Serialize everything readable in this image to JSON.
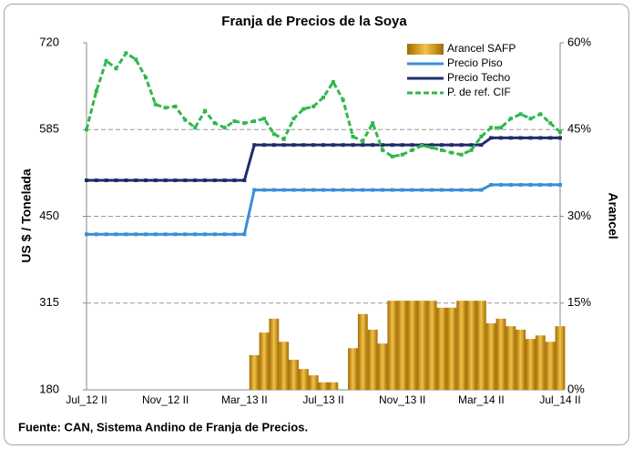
{
  "chart_data": {
    "type": "bar-line",
    "title": "Franja de Precios de la Soya",
    "ylabel": "US $ / Tonelada",
    "y2label": "Arancel",
    "source": "Fuente: CAN, Sistema Andino de Franja de Precios.",
    "categories": [
      "Jul_12 II",
      null,
      null,
      null,
      null,
      null,
      null,
      null,
      "Nov_12 II",
      null,
      null,
      null,
      null,
      null,
      null,
      null,
      "Mar_13 II",
      null,
      null,
      null,
      null,
      null,
      null,
      null,
      "Jul_13 II",
      null,
      null,
      null,
      null,
      null,
      null,
      null,
      "Nov_13 II",
      null,
      null,
      null,
      null,
      null,
      null,
      null,
      "Mar_14 II",
      null,
      null,
      null,
      null,
      null,
      null,
      null,
      "Jul_14 II"
    ],
    "series": [
      {
        "name": "Arancel SAFP",
        "kind": "bar",
        "axis": "y2",
        "color": "#d39a14",
        "values": [
          0,
          0,
          0,
          0,
          0,
          0,
          0,
          0,
          0,
          0,
          0,
          0,
          0,
          0,
          0,
          0,
          0,
          6.0,
          9.9,
          12.3,
          8.3,
          5.2,
          3.6,
          2.5,
          1.3,
          1.3,
          0,
          7.2,
          13.1,
          10.4,
          8.0,
          15.4,
          15.4,
          15.4,
          15.4,
          15.4,
          14.2,
          14.2,
          15.4,
          15.4,
          15.4,
          11.5,
          12.3,
          11.0,
          10.4,
          8.8,
          9.4,
          8.3,
          11.0
        ]
      },
      {
        "name": "Precio Piso",
        "kind": "line",
        "color": "#3a8fd6",
        "values": [
          422,
          422,
          422,
          422,
          422,
          422,
          422,
          422,
          422,
          422,
          422,
          422,
          422,
          422,
          422,
          422,
          422,
          491,
          491,
          491,
          491,
          491,
          491,
          491,
          491,
          491,
          491,
          491,
          491,
          491,
          491,
          491,
          491,
          491,
          491,
          491,
          491,
          491,
          491,
          491,
          491,
          499,
          499,
          499,
          499,
          499,
          499,
          499,
          499
        ]
      },
      {
        "name": "Precio Techo",
        "kind": "line",
        "color": "#1f2d6b",
        "values": [
          506,
          506,
          506,
          506,
          506,
          506,
          506,
          506,
          506,
          506,
          506,
          506,
          506,
          506,
          506,
          506,
          506,
          561,
          561,
          561,
          561,
          561,
          561,
          561,
          561,
          561,
          561,
          561,
          561,
          561,
          561,
          561,
          561,
          561,
          561,
          561,
          561,
          561,
          561,
          561,
          561,
          572,
          572,
          572,
          572,
          572,
          572,
          572,
          572
        ]
      },
      {
        "name": "P. de ref. CIF",
        "kind": "line",
        "color": "#2fb84c",
        "dashed": true,
        "values": [
          585,
          645,
          692,
          680,
          704,
          694,
          666,
          624,
          619,
          621,
          600,
          588,
          614,
          595,
          588,
          598,
          595,
          598,
          602,
          578,
          570,
          602,
          617,
          621,
          635,
          659,
          631,
          574,
          567,
          595,
          553,
          543,
          546,
          553,
          560,
          557,
          553,
          549,
          546,
          553,
          574,
          588,
          588,
          602,
          609,
          602,
          609,
          595,
          581
        ]
      }
    ],
    "ylim": [
      180,
      720
    ],
    "yticks": [
      180,
      315,
      450,
      585,
      720
    ],
    "y2lim": [
      0,
      60
    ],
    "y2ticks": [
      {
        "value": 0,
        "label": "0%"
      },
      {
        "value": 15,
        "label": "15%"
      },
      {
        "value": 30,
        "label": "30%"
      },
      {
        "value": 45,
        "label": "45%"
      },
      {
        "value": 60,
        "label": "60%"
      }
    ],
    "grid": true,
    "legend": "upper right"
  }
}
